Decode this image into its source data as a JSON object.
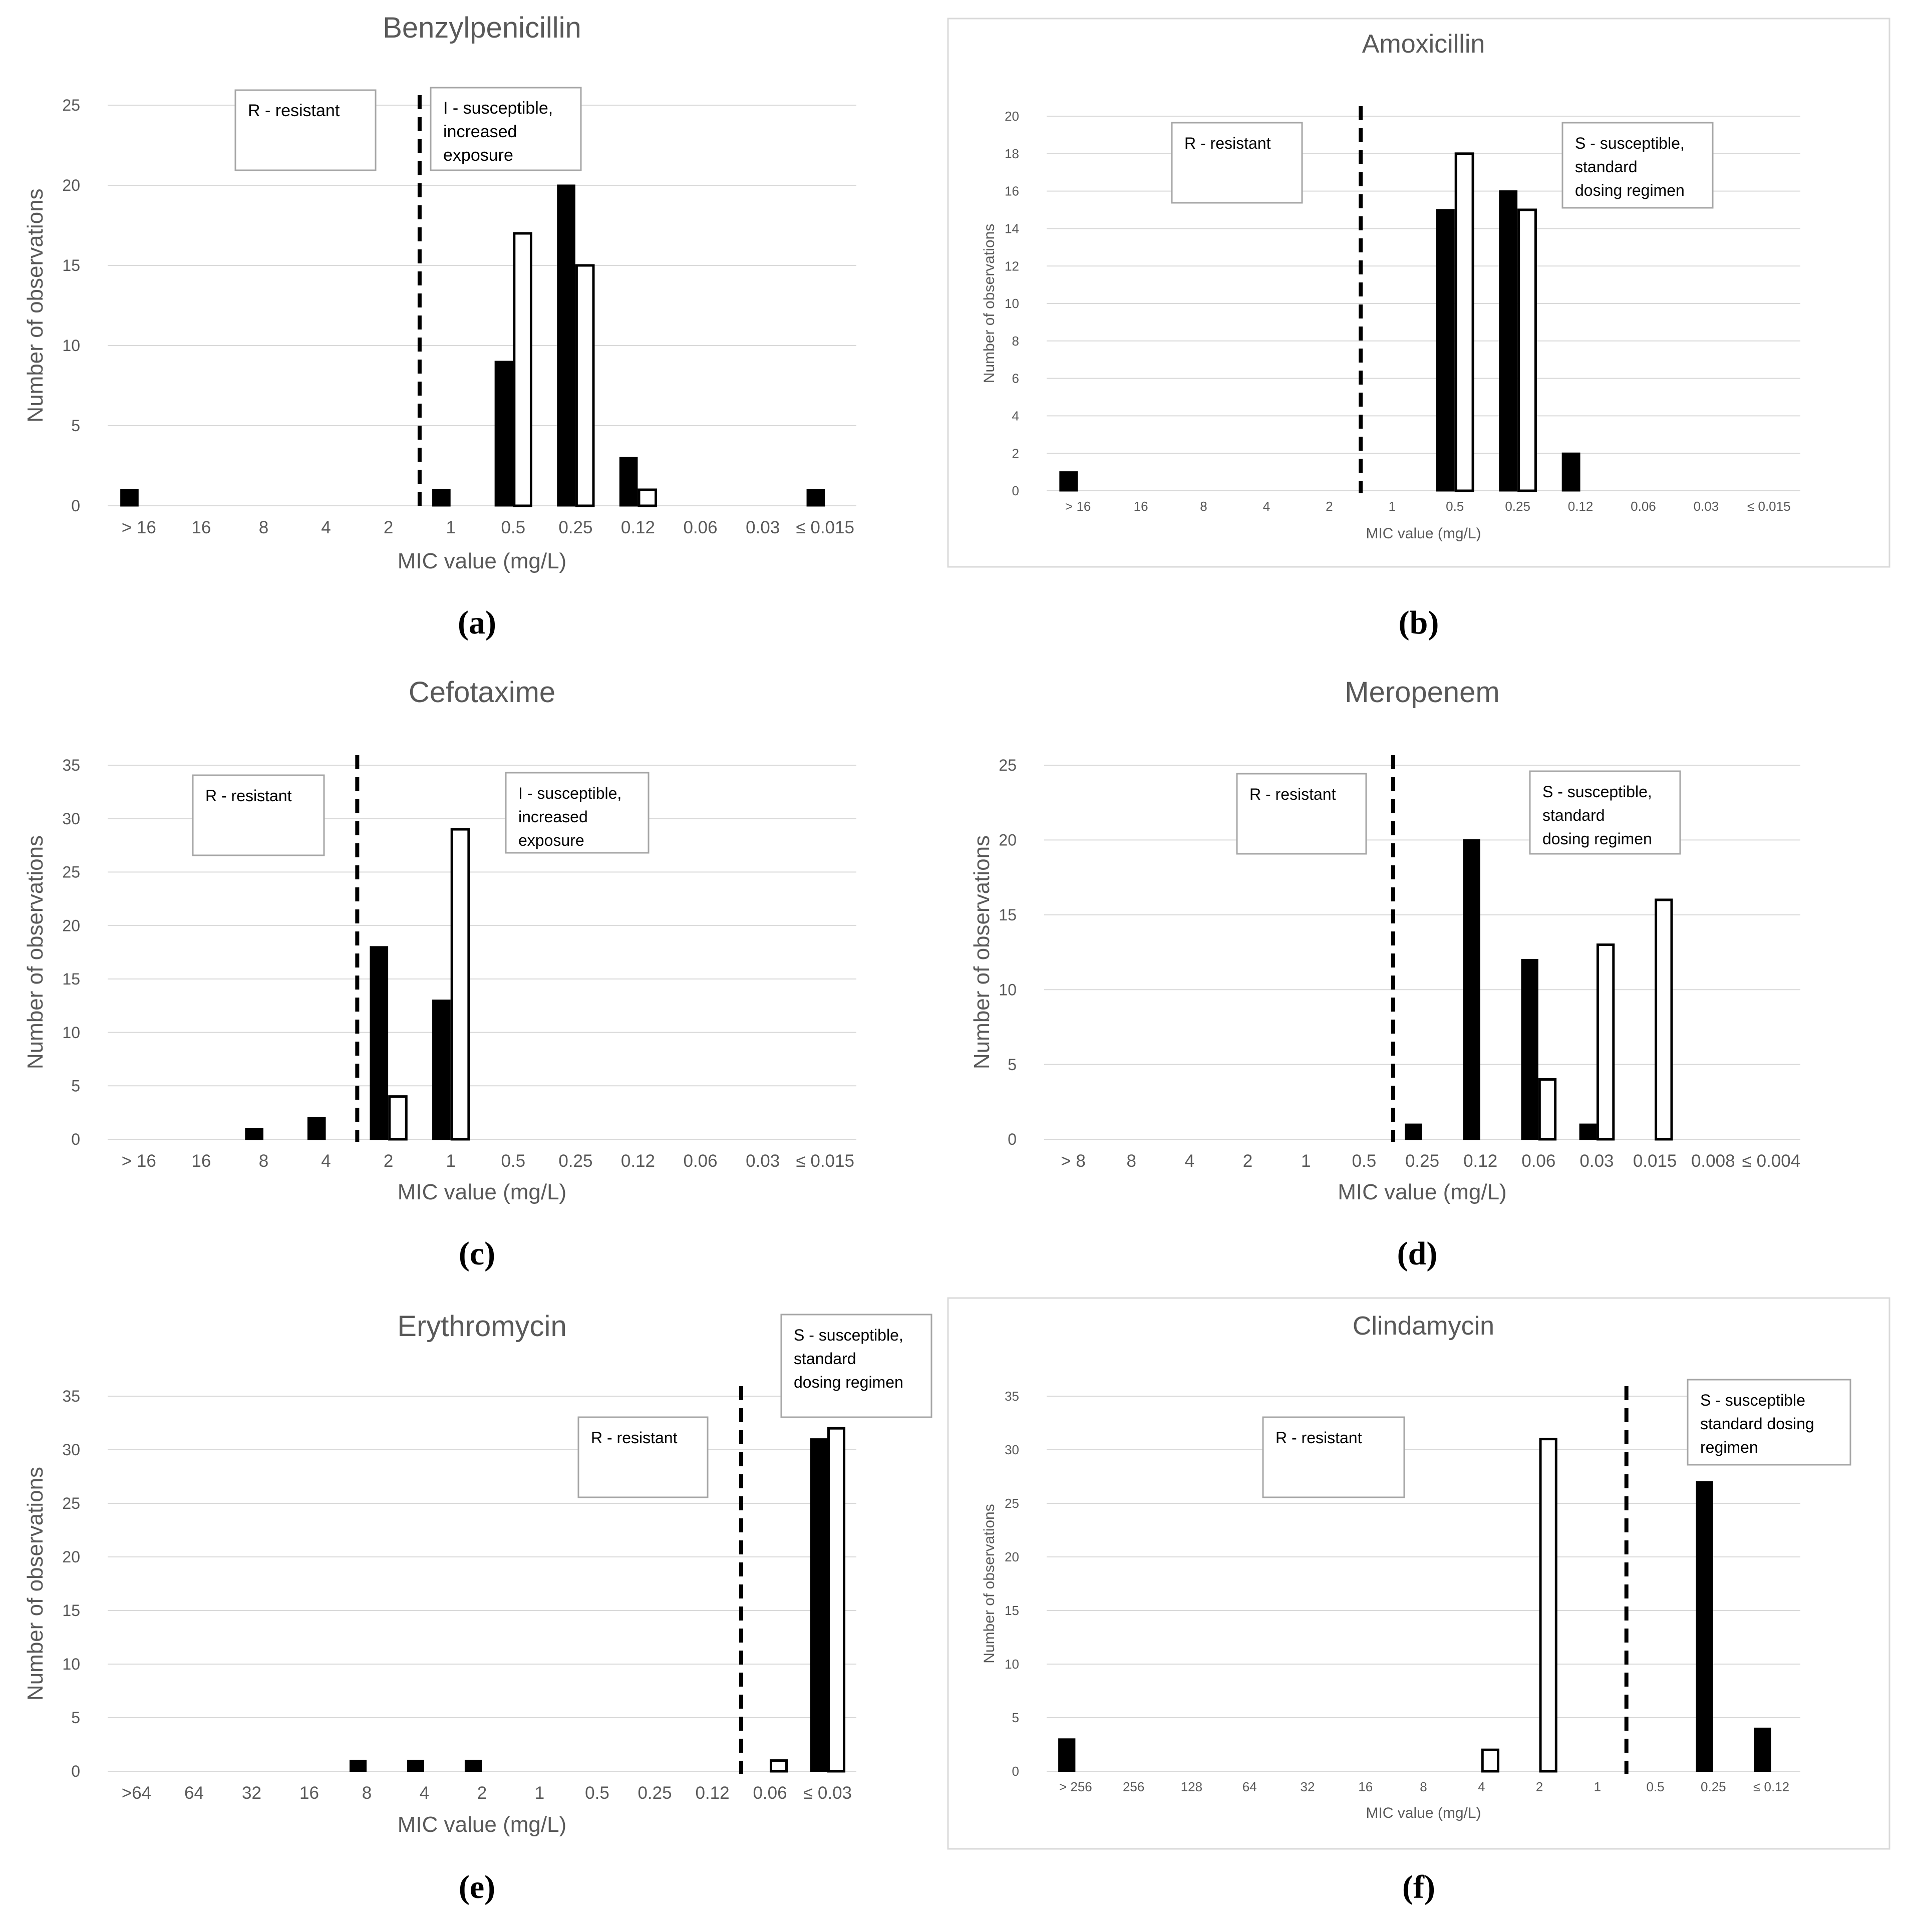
{
  "colors": {
    "text": "#595959",
    "grid": "#d9d9d9",
    "bar_dark": "#000000",
    "bar_light": "#ffffff",
    "frame": "#d9d9d9"
  },
  "chart_data": [
    {
      "type": "bar",
      "panel": "(a)",
      "title": "Benzylpenicillin",
      "xlabel": "MIC value (mg/L)",
      "ylabel": "Number of observations",
      "framed": false,
      "ylim": [
        0,
        25
      ],
      "yticks": [
        0,
        5,
        10,
        15,
        20,
        25
      ],
      "categories": [
        "> 16",
        "16",
        "8",
        "4",
        "2",
        "1",
        "0.5",
        "0.25",
        "0.12",
        "0.06",
        "0.03",
        "≤ 0.015"
      ],
      "series": [
        {
          "name": "dark",
          "values": [
            1,
            0,
            0,
            0,
            0,
            1,
            9,
            20,
            3,
            0,
            0,
            1
          ]
        },
        {
          "name": "light",
          "values": [
            0,
            0,
            0,
            0,
            0,
            0,
            17,
            15,
            1,
            0,
            0,
            0
          ]
        }
      ],
      "breakpoint_after_index": 4,
      "annotations": [
        {
          "lines": [
            "R - resistant"
          ]
        },
        {
          "lines": [
            "I - susceptible,",
            "increased",
            "exposure"
          ]
        }
      ]
    },
    {
      "type": "bar",
      "panel": "(b)",
      "title": "Amoxicillin",
      "xlabel": "MIC value (mg/L)",
      "ylabel": "Number of observations",
      "framed": true,
      "ylim": [
        0,
        20
      ],
      "yticks": [
        0,
        2,
        4,
        6,
        8,
        10,
        12,
        14,
        16,
        18,
        20
      ],
      "categories": [
        "> 16",
        "16",
        "8",
        "4",
        "2",
        "1",
        "0.5",
        "0.25",
        "0.12",
        "0.06",
        "0.03",
        "≤ 0.015"
      ],
      "series": [
        {
          "name": "dark",
          "values": [
            1,
            0,
            0,
            0,
            0,
            0,
            15,
            16,
            2,
            0,
            0,
            0
          ]
        },
        {
          "name": "light",
          "values": [
            0,
            0,
            0,
            0,
            0,
            0,
            18,
            15,
            0,
            0,
            0,
            0
          ]
        }
      ],
      "breakpoint_after_index": 4,
      "annotations": [
        {
          "lines": [
            "R - resistant"
          ]
        },
        {
          "lines": [
            "S - susceptible,",
            "standard",
            "dosing regimen"
          ]
        }
      ]
    },
    {
      "type": "bar",
      "panel": "(c)",
      "title": "Cefotaxime",
      "xlabel": "MIC value (mg/L)",
      "ylabel": "Number of observations",
      "framed": false,
      "ylim": [
        0,
        35
      ],
      "yticks": [
        0,
        5,
        10,
        15,
        20,
        25,
        30,
        35
      ],
      "categories": [
        "> 16",
        "16",
        "8",
        "4",
        "2",
        "1",
        "0.5",
        "0.25",
        "0.12",
        "0.06",
        "0.03",
        "≤ 0.015"
      ],
      "series": [
        {
          "name": "dark",
          "values": [
            0,
            0,
            1,
            2,
            18,
            13,
            0,
            0,
            0,
            0,
            0,
            0
          ]
        },
        {
          "name": "light",
          "values": [
            0,
            0,
            0,
            0,
            4,
            29,
            0,
            0,
            0,
            0,
            0,
            0
          ]
        }
      ],
      "breakpoint_after_index": 3,
      "annotations": [
        {
          "lines": [
            "R - resistant"
          ]
        },
        {
          "lines": [
            "I - susceptible,",
            "increased",
            "exposure"
          ]
        }
      ]
    },
    {
      "type": "bar",
      "panel": "(d)",
      "title": "Meropenem",
      "xlabel": "MIC value (mg/L)",
      "ylabel": "Number of observations",
      "framed": false,
      "ylim": [
        0,
        25
      ],
      "yticks": [
        0,
        5,
        10,
        15,
        20,
        25
      ],
      "categories": [
        "> 8",
        "8",
        "4",
        "2",
        "1",
        "0.5",
        "0.25",
        "0.12",
        "0.06",
        "0.03",
        "0.015",
        "0.008",
        "≤ 0.004"
      ],
      "series": [
        {
          "name": "dark",
          "values": [
            0,
            0,
            0,
            0,
            0,
            0,
            1,
            20,
            12,
            1,
            0,
            0,
            0
          ]
        },
        {
          "name": "light",
          "values": [
            0,
            0,
            0,
            0,
            0,
            0,
            0,
            0,
            4,
            13,
            16,
            0,
            0
          ]
        }
      ],
      "breakpoint_after_index": 5,
      "annotations": [
        {
          "lines": [
            "R - resistant"
          ]
        },
        {
          "lines": [
            "S - susceptible,",
            "standard",
            "dosing regimen"
          ]
        }
      ]
    },
    {
      "type": "bar",
      "panel": "(e)",
      "title": "Erythromycin",
      "xlabel": "MIC value (mg/L)",
      "ylabel": "Number of observations",
      "framed": false,
      "ylim": [
        0,
        35
      ],
      "yticks": [
        0,
        5,
        10,
        15,
        20,
        25,
        30,
        35
      ],
      "categories": [
        ">64",
        "64",
        "32",
        "16",
        "8",
        "4",
        "2",
        "1",
        "0.5",
        "0.25",
        "0.12",
        "0.06",
        "≤ 0.03"
      ],
      "series": [
        {
          "name": "dark",
          "values": [
            0,
            0,
            0,
            0,
            1,
            1,
            1,
            0,
            0,
            0,
            0,
            0,
            31
          ]
        },
        {
          "name": "light",
          "values": [
            0,
            0,
            0,
            0,
            0,
            0,
            0,
            0,
            0,
            0,
            0,
            1,
            32
          ]
        }
      ],
      "breakpoint_after_index": 10,
      "annotations": [
        {
          "lines": [
            "R - resistant"
          ]
        },
        {
          "lines": [
            "S - susceptible,",
            "standard",
            "dosing regimen"
          ]
        }
      ]
    },
    {
      "type": "bar",
      "panel": "(f)",
      "title": "Clindamycin",
      "xlabel": "MIC value (mg/L)",
      "ylabel": "Number of observations",
      "framed": true,
      "ylim": [
        0,
        35
      ],
      "yticks": [
        0,
        5,
        10,
        15,
        20,
        25,
        30,
        35
      ],
      "categories": [
        "> 256",
        "256",
        "128",
        "64",
        "32",
        "16",
        "8",
        "4",
        "2",
        "1",
        "0.5",
        "0.25",
        "≤ 0.12"
      ],
      "series": [
        {
          "name": "dark",
          "values": [
            3,
            0,
            0,
            0,
            0,
            0,
            0,
            0,
            0,
            0,
            0,
            27,
            4
          ]
        },
        {
          "name": "light",
          "values": [
            0,
            0,
            0,
            0,
            0,
            0,
            0,
            2,
            31,
            0,
            0,
            0,
            0
          ]
        }
      ],
      "breakpoint_after_index": 9,
      "annotations": [
        {
          "lines": [
            "R - resistant"
          ]
        },
        {
          "lines": [
            "S - susceptible",
            "standard dosing",
            "regimen"
          ]
        }
      ]
    }
  ]
}
